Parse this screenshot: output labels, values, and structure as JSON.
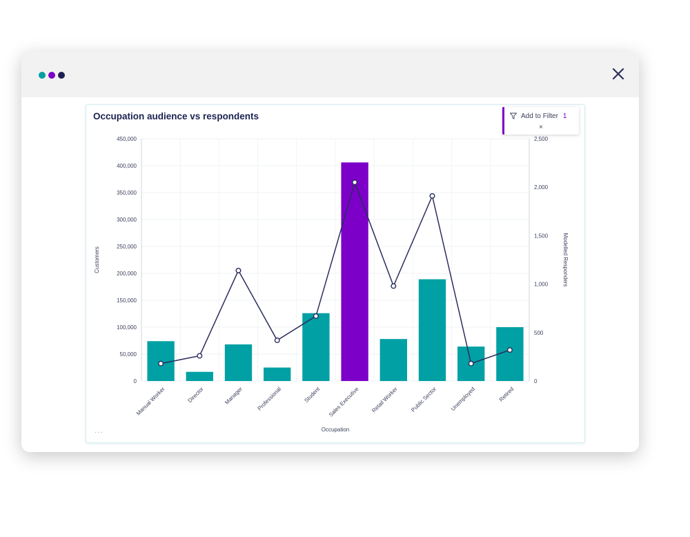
{
  "window": {
    "dots": [
      {
        "color": "#00a0a4",
        "name": "teal-dot"
      },
      {
        "color": "#7c00c8",
        "name": "purple-dot"
      },
      {
        "color": "#1c2152",
        "name": "navy-dot"
      }
    ],
    "close_icon": "close-icon"
  },
  "card": {
    "title": "Occupation audience vs respondents",
    "filter": {
      "label": "Add to Filter",
      "count": "1",
      "close": "×",
      "icon": "filter-icon"
    },
    "more": "..."
  },
  "colors": {
    "bar": "#00a0a4",
    "bar_selected": "#7c00c8",
    "line": "#2a2d5c"
  },
  "chart_data": {
    "type": "bar",
    "title": "Occupation audience vs respondents",
    "xlabel": "Occupation",
    "ylabel": "Customers",
    "y2label": "Modelled Responders",
    "categories": [
      "Manual Worker",
      "Director",
      "Manager",
      "Professional",
      "Student",
      "Sales Executive",
      "Retail Worker",
      "Public Sector",
      "Unemployed",
      "Retired"
    ],
    "ylim": [
      0,
      450000
    ],
    "y2lim": [
      0,
      2500
    ],
    "yticks": [
      "0",
      "50,000",
      "100,000",
      "150,000",
      "200,000",
      "250,000",
      "300,000",
      "350,000",
      "400,000",
      "450,000"
    ],
    "y2ticks": [
      "0",
      "500",
      "1,000",
      "1,500",
      "2,000",
      "2,500"
    ],
    "selected_category": "Sales Executive",
    "series": [
      {
        "type": "bar",
        "axis": "left",
        "values": [
          74000,
          17000,
          68000,
          25000,
          126000,
          406000,
          78000,
          189000,
          64000,
          100000
        ]
      },
      {
        "type": "line",
        "axis": "right",
        "values": [
          180,
          260,
          1140,
          420,
          670,
          2050,
          980,
          1910,
          180,
          320
        ]
      }
    ]
  }
}
